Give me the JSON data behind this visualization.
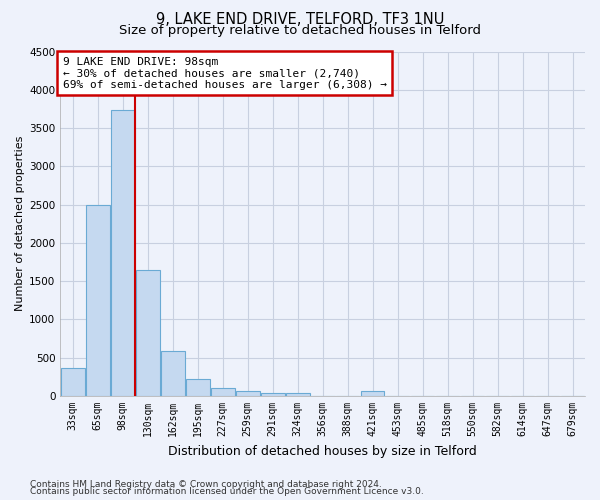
{
  "title": "9, LAKE END DRIVE, TELFORD, TF3 1NU",
  "subtitle": "Size of property relative to detached houses in Telford",
  "xlabel": "Distribution of detached houses by size in Telford",
  "ylabel": "Number of detached properties",
  "categories": [
    "33sqm",
    "65sqm",
    "98sqm",
    "130sqm",
    "162sqm",
    "195sqm",
    "227sqm",
    "259sqm",
    "291sqm",
    "324sqm",
    "356sqm",
    "388sqm",
    "421sqm",
    "453sqm",
    "485sqm",
    "518sqm",
    "550sqm",
    "582sqm",
    "614sqm",
    "647sqm",
    "679sqm"
  ],
  "values": [
    370,
    2500,
    3730,
    1640,
    590,
    225,
    105,
    60,
    40,
    35,
    0,
    0,
    65,
    0,
    0,
    0,
    0,
    0,
    0,
    0,
    0
  ],
  "bar_color": "#c5d9f0",
  "bar_edge_color": "#6aaad4",
  "vline_x_index": 2,
  "vline_color": "#cc0000",
  "annotation_line1": "9 LAKE END DRIVE: 98sqm",
  "annotation_line2": "← 30% of detached houses are smaller (2,740)",
  "annotation_line3": "69% of semi-detached houses are larger (6,308) →",
  "annotation_box_color": "#ffffff",
  "annotation_box_edge_color": "#cc0000",
  "ylim": [
    0,
    4500
  ],
  "yticks": [
    0,
    500,
    1000,
    1500,
    2000,
    2500,
    3000,
    3500,
    4000,
    4500
  ],
  "footer_line1": "Contains HM Land Registry data © Crown copyright and database right 2024.",
  "footer_line2": "Contains public sector information licensed under the Open Government Licence v3.0.",
  "background_color": "#eef2fb",
  "grid_color": "#c8d0e0",
  "title_fontsize": 10.5,
  "subtitle_fontsize": 9.5,
  "ylabel_fontsize": 8,
  "xlabel_fontsize": 9,
  "tick_fontsize": 7,
  "annotation_fontsize": 8,
  "footer_fontsize": 6.5
}
